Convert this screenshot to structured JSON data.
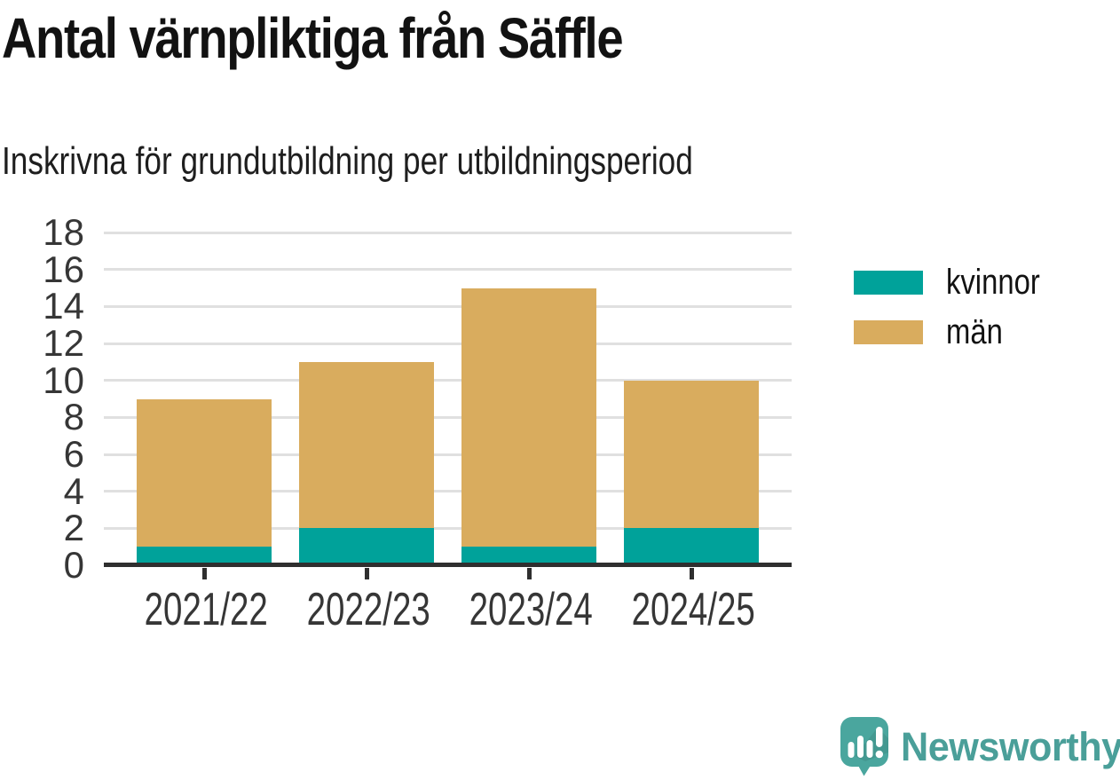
{
  "title": "Antal värnpliktiga från Säffle",
  "subtitle": "Inskrivna för grundutbildning per utbildningsperiod",
  "colors": {
    "kvinnor": "#00a29a",
    "man": "#d9ac5e",
    "axis": "#2f2f2f",
    "gridline": "#e0e0e0",
    "tick_text": "#363636",
    "title_text": "#121212",
    "logo_teal": "#4a9f99",
    "logo_icon": "#4aa69e"
  },
  "chart_data": {
    "type": "bar",
    "stacked": true,
    "title": "Antal värnpliktiga från Säffle",
    "subtitle": "Inskrivna för grundutbildning per utbildningsperiod",
    "categories": [
      "2021/22",
      "2022/23",
      "2023/24",
      "2024/25"
    ],
    "series": [
      {
        "name": "kvinnor",
        "color": "#00a29a",
        "values": [
          1,
          2,
          1,
          2
        ]
      },
      {
        "name": "män",
        "color": "#d9ac5e",
        "values": [
          8,
          9,
          14,
          8
        ]
      }
    ],
    "stacked_totals": [
      9,
      11,
      15,
      10
    ],
    "xlabel": "",
    "ylabel": "",
    "ylim": [
      0,
      18
    ],
    "yticks": [
      0,
      2,
      4,
      6,
      8,
      10,
      12,
      14,
      16,
      18
    ],
    "grid": true,
    "legend_position": "right"
  },
  "legend": {
    "items": [
      {
        "label": "kvinnor",
        "color": "#00a29a"
      },
      {
        "label": "män",
        "color": "#d9ac5e"
      }
    ]
  },
  "branding": {
    "logo_text": "Newsworthy"
  }
}
